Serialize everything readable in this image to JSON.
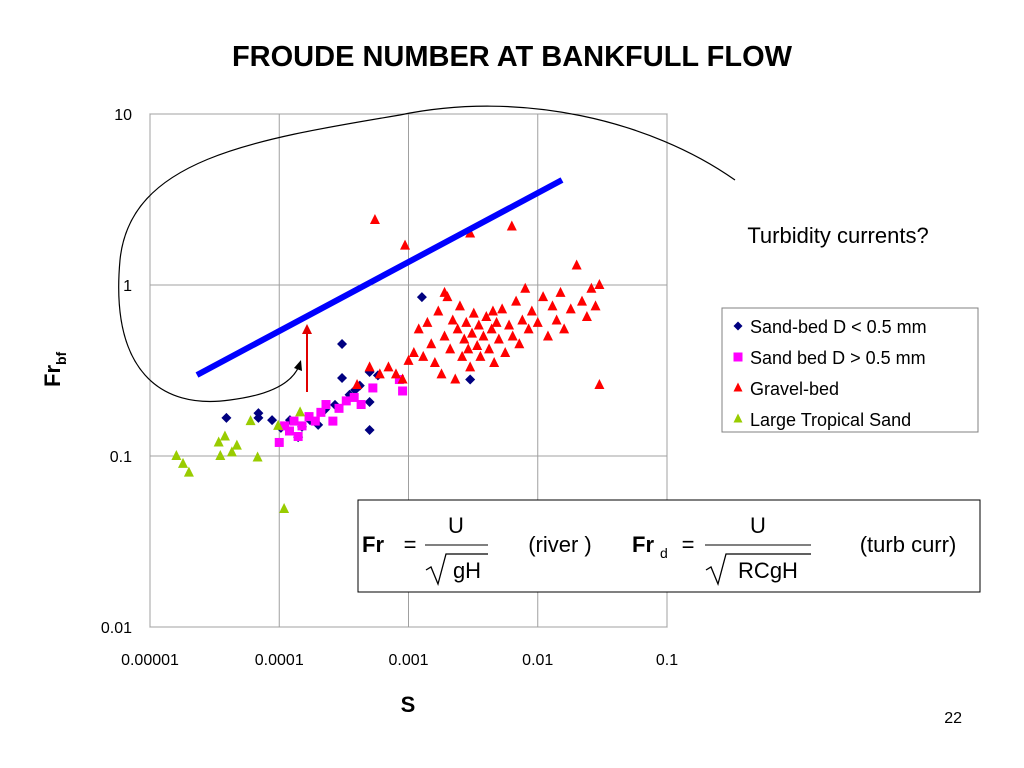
{
  "chart_data": {
    "type": "scatter",
    "title": "FROUDE NUMBER AT BANKFULL FLOW",
    "x_label": "S",
    "y_label": "Fr",
    "y_label_sub": "bf",
    "xscale": "log",
    "yscale": "log",
    "xlim": [
      1e-05,
      0.1
    ],
    "ylim": [
      0.01,
      10
    ],
    "xticks": [
      1e-05,
      0.0001,
      0.001,
      0.01,
      0.1
    ],
    "yticks": [
      0.01,
      0.1,
      1,
      10
    ],
    "grid": true,
    "legend": "right",
    "series": [
      {
        "name": "Sand-bed D < 0.5 mm",
        "color": "#000080",
        "marker": "diamond",
        "x": [
          3.9e-05,
          6.9e-05,
          6.9e-05,
          8.8e-05,
          0.000103,
          0.000121,
          0.00014,
          0.00015,
          0.000173,
          0.0002,
          0.000226,
          0.00027,
          0.000306,
          0.000306,
          0.00035,
          0.000386,
          0.00042,
          0.0005,
          0.0005,
          0.0005,
          0.00058,
          0.00127,
          0.003
        ],
        "values": [
          0.167,
          0.178,
          0.167,
          0.162,
          0.146,
          0.162,
          0.129,
          0.148,
          0.162,
          0.152,
          0.187,
          0.199,
          0.452,
          0.286,
          0.228,
          0.243,
          0.258,
          0.31,
          0.207,
          0.142,
          0.296,
          0.85,
          0.28
        ]
      },
      {
        "name": "Sand bed D > 0.5 mm",
        "color": "#ff00ff",
        "marker": "square",
        "x": [
          0.0001,
          0.00011,
          0.00012,
          0.00013,
          0.00014,
          0.00015,
          0.00017,
          0.00019,
          0.00021,
          0.00023,
          0.00026,
          0.00029,
          0.00033,
          0.00038,
          0.00043,
          0.00053,
          0.00085,
          0.0009
        ],
        "values": [
          0.12,
          0.15,
          0.14,
          0.16,
          0.13,
          0.15,
          0.17,
          0.16,
          0.18,
          0.2,
          0.16,
          0.19,
          0.21,
          0.22,
          0.2,
          0.25,
          0.28,
          0.24
        ]
      },
      {
        "name": "Gravel-bed",
        "color": "#ff0000",
        "marker": "triangle",
        "x": [
          0.00055,
          0.00094,
          0.003,
          0.0063,
          0.03,
          0.0004,
          0.0005,
          0.0006,
          0.0007,
          0.0008,
          0.0009,
          0.001,
          0.0011,
          0.0012,
          0.0013,
          0.0014,
          0.0015,
          0.0016,
          0.0017,
          0.0018,
          0.0019,
          0.002,
          0.0021,
          0.0022,
          0.0023,
          0.0024,
          0.0025,
          0.0026,
          0.0027,
          0.0028,
          0.003,
          0.0031,
          0.0032,
          0.0034,
          0.0035,
          0.0036,
          0.0038,
          0.004,
          0.0042,
          0.0044,
          0.0046,
          0.0048,
          0.005,
          0.0053,
          0.0056,
          0.006,
          0.0064,
          0.0068,
          0.0072,
          0.0076,
          0.008,
          0.0085,
          0.009,
          0.01,
          0.011,
          0.012,
          0.013,
          0.014,
          0.015,
          0.016,
          0.018,
          0.02,
          0.022,
          0.024,
          0.026,
          0.028,
          0.03,
          0.0019,
          0.0029,
          0.0045
        ],
        "values": [
          2.4,
          1.7,
          2.0,
          2.2,
          0.26,
          0.26,
          0.33,
          0.3,
          0.33,
          0.3,
          0.28,
          0.36,
          0.4,
          0.55,
          0.38,
          0.6,
          0.45,
          0.35,
          0.7,
          0.3,
          0.5,
          0.85,
          0.42,
          0.62,
          0.28,
          0.55,
          0.75,
          0.38,
          0.48,
          0.6,
          0.33,
          0.52,
          0.68,
          0.44,
          0.58,
          0.38,
          0.5,
          0.65,
          0.42,
          0.55,
          0.35,
          0.6,
          0.48,
          0.72,
          0.4,
          0.58,
          0.5,
          0.8,
          0.45,
          0.62,
          0.95,
          0.55,
          0.7,
          0.6,
          0.85,
          0.5,
          0.75,
          0.62,
          0.9,
          0.55,
          0.72,
          1.3,
          0.8,
          0.65,
          0.95,
          0.75,
          1.0,
          0.9,
          0.42,
          0.7
        ]
      },
      {
        "name": "Large Tropical Sand",
        "color": "#99cc00",
        "marker": "triangle",
        "x": [
          1.6e-05,
          1.8e-05,
          2e-05,
          3.4e-05,
          3.8e-05,
          3.5e-05,
          4.3e-05,
          4.7e-05,
          6e-05,
          6.8e-05,
          9.8e-05,
          0.000109,
          0.000145
        ],
        "values": [
          0.1,
          0.09,
          0.08,
          0.12,
          0.13,
          0.1,
          0.105,
          0.115,
          0.16,
          0.098,
          0.15,
          0.049,
          0.18
        ]
      }
    ],
    "annotations": {
      "turbidity": "Turbidity currents?",
      "formulas": [
        {
          "lhs": "Fr",
          "eq": "=",
          "num": "U",
          "den": "gH",
          "note": "(river )"
        },
        {
          "lhs": "Fr",
          "sub": "d",
          "eq": "=",
          "num": "U",
          "den": "RCgH",
          "note": "(turb curr)"
        }
      ]
    },
    "page_number": "22"
  }
}
